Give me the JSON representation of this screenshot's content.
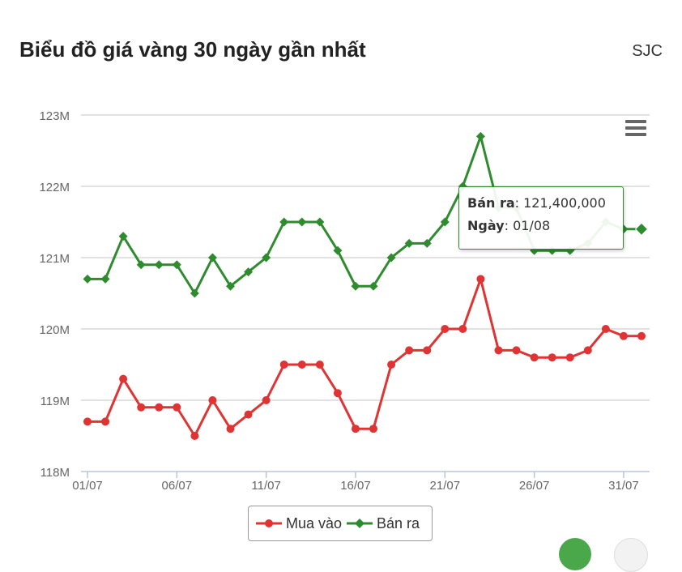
{
  "header": {
    "title": "Biểu đồ giá vàng 30 ngày gần nhất",
    "brand": "SJC"
  },
  "menu": {
    "icon": "hamburger-menu-icon"
  },
  "tooltip": {
    "series_label": "Bán ra",
    "series_value": "121,400,000",
    "date_label": "Ngày",
    "date_value": "01/08"
  },
  "legend": {
    "buy_label": "Mua vào",
    "sell_label": "Bán ra"
  },
  "colors": {
    "buy": "#e03434",
    "sell": "#2e8b2e",
    "grid": "#d8d8d8",
    "axis": "#b8c6d8"
  },
  "chart_data": {
    "type": "line",
    "title": "Biểu đồ giá vàng 30 ngày gần nhất",
    "x": [
      "01/07",
      "02/07",
      "03/07",
      "04/07",
      "05/07",
      "06/07",
      "07/07",
      "08/07",
      "09/07",
      "10/07",
      "11/07",
      "12/07",
      "13/07",
      "14/07",
      "15/07",
      "16/07",
      "17/07",
      "18/07",
      "19/07",
      "20/07",
      "21/07",
      "22/07",
      "23/07",
      "24/07",
      "25/07",
      "26/07",
      "27/07",
      "28/07",
      "29/07",
      "30/07",
      "31/07",
      "01/08"
    ],
    "x_tick_labels": [
      "01/07",
      "06/07",
      "11/07",
      "16/07",
      "21/07",
      "26/07",
      "31/07"
    ],
    "y_tick_labels": [
      "118M",
      "119M",
      "120M",
      "121M",
      "122M",
      "123M"
    ],
    "ylim": [
      118,
      123
    ],
    "y_unit": "M",
    "grid": true,
    "legend_position": "bottom-center",
    "series": [
      {
        "name": "Mua vào",
        "color": "#e03434",
        "marker": "circle",
        "values": [
          118.7,
          118.7,
          119.3,
          118.9,
          118.9,
          118.9,
          118.5,
          119.0,
          118.6,
          118.8,
          119.0,
          119.5,
          119.5,
          119.5,
          119.1,
          118.6,
          118.6,
          119.5,
          119.7,
          119.7,
          120.0,
          120.0,
          120.7,
          119.7,
          119.7,
          119.6,
          119.6,
          119.6,
          119.7,
          120.0,
          119.9,
          119.9
        ]
      },
      {
        "name": "Bán ra",
        "color": "#2e8b2e",
        "marker": "diamond",
        "values": [
          120.7,
          120.7,
          121.3,
          120.9,
          120.9,
          120.9,
          120.5,
          121.0,
          120.6,
          120.8,
          121.0,
          121.5,
          121.5,
          121.5,
          121.1,
          120.6,
          120.6,
          121.0,
          121.2,
          121.2,
          121.5,
          122.0,
          122.7,
          121.7,
          121.7,
          121.1,
          121.1,
          121.1,
          121.2,
          121.5,
          121.4,
          121.4
        ]
      }
    ]
  }
}
